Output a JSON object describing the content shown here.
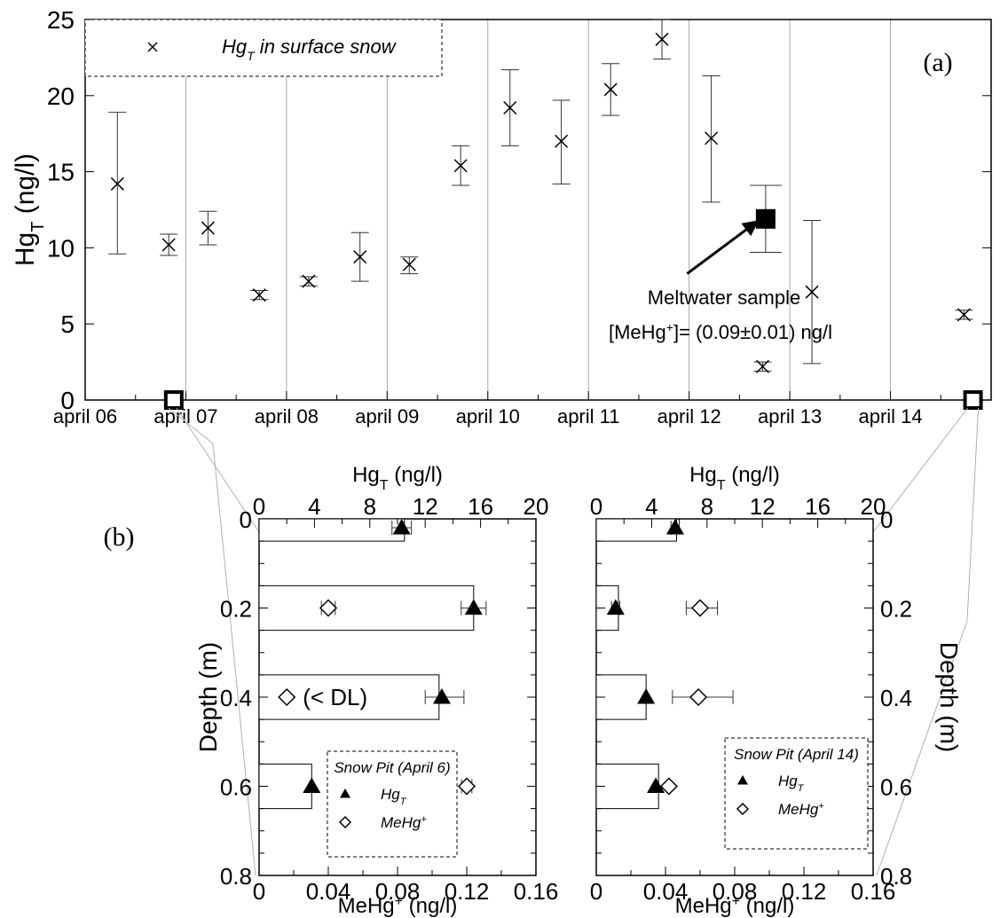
{
  "chart_data": [
    {
      "id": "a",
      "type": "scatter",
      "panel_label": "(a)",
      "title": "",
      "ylabel": "Hg",
      "ylabel_sub": "T",
      "ylabel_unit": " (ng/l)",
      "xlabel": "",
      "ylim": [
        0,
        25
      ],
      "xlim": [
        6.0,
        15.0
      ],
      "yticks": [
        0,
        5,
        10,
        15,
        20,
        25
      ],
      "xticks": [
        {
          "v": 6,
          "label": "april 06"
        },
        {
          "v": 7,
          "label": "april 07"
        },
        {
          "v": 8,
          "label": "april 08"
        },
        {
          "v": 9,
          "label": "april 09"
        },
        {
          "v": 10,
          "label": "april 10"
        },
        {
          "v": 11,
          "label": "april 11"
        },
        {
          "v": 12,
          "label": "april 12"
        },
        {
          "v": 13,
          "label": "april 13"
        },
        {
          "v": 14,
          "label": "april 14"
        }
      ],
      "grid": "vertical",
      "legend": {
        "position": "top-left",
        "label_pre": "Hg",
        "label_sub": "T",
        "label_post": " in  surface snow"
      },
      "series": [
        {
          "name": "HgT in surface snow",
          "marker": "x",
          "points": [
            {
              "x": 6.32,
              "y": 14.2,
              "lo": 9.6,
              "hi": 18.9
            },
            {
              "x": 6.83,
              "y": 10.2,
              "lo": 9.5,
              "hi": 10.9
            },
            {
              "x": 7.22,
              "y": 11.3,
              "lo": 10.2,
              "hi": 12.4
            },
            {
              "x": 7.73,
              "y": 6.9,
              "lo": 6.6,
              "hi": 7.2
            },
            {
              "x": 8.22,
              "y": 7.8,
              "lo": 7.5,
              "hi": 8.1
            },
            {
              "x": 8.73,
              "y": 9.4,
              "lo": 7.8,
              "hi": 11.0
            },
            {
              "x": 9.22,
              "y": 8.9,
              "lo": 8.3,
              "hi": 9.4
            },
            {
              "x": 9.73,
              "y": 15.4,
              "lo": 14.1,
              "hi": 16.7
            },
            {
              "x": 10.22,
              "y": 19.2,
              "lo": 16.7,
              "hi": 21.7
            },
            {
              "x": 10.73,
              "y": 17.0,
              "lo": 14.2,
              "hi": 19.7
            },
            {
              "x": 11.22,
              "y": 20.4,
              "lo": 18.7,
              "hi": 22.1
            },
            {
              "x": 11.73,
              "y": 23.7,
              "lo": 22.4,
              "hi": 25.0
            },
            {
              "x": 12.22,
              "y": 17.2,
              "lo": 13.0,
              "hi": 21.3
            },
            {
              "x": 12.73,
              "y": 2.2,
              "lo": 1.9,
              "hi": 2.5
            },
            {
              "x": 13.22,
              "y": 7.1,
              "lo": 2.4,
              "hi": 11.8
            },
            {
              "x": 14.73,
              "y": 5.6,
              "lo": 5.3,
              "hi": 5.9
            }
          ]
        },
        {
          "name": "Meltwater sample",
          "marker": "filled-square",
          "points": [
            {
              "x": 12.76,
              "y": 11.9,
              "lo": 9.7,
              "hi": 14.1
            }
          ]
        },
        {
          "name": "snow pit markers",
          "marker": "open-square",
          "points": [
            {
              "x": 6.88,
              "y": 0
            },
            {
              "x": 14.82,
              "y": 0
            }
          ]
        }
      ],
      "annotation": {
        "line1": "Meltwater sample",
        "line2_pre": "[MeHg",
        "line2_sup": "+",
        "line2_post": "]= (0.09±0.01) ng/l",
        "arrow_from": {
          "x": 11.98,
          "y": 8.3
        },
        "arrow_to": {
          "x": 12.68,
          "y": 11.75
        }
      }
    },
    {
      "id": "b_left",
      "type": "bar",
      "panel_label": "(b)",
      "title": "",
      "ylabel": "Depth (m)",
      "ylim": [
        0,
        0.8
      ],
      "yticks": [
        0,
        0.2,
        0.4,
        0.6,
        0.8
      ],
      "top_axis": {
        "label_pre": "Hg",
        "label_sub": "T",
        "label_post": " (ng/l)",
        "lim": [
          0,
          20
        ],
        "ticks": [
          0,
          4,
          8,
          12,
          16,
          20
        ]
      },
      "bottom_axis": {
        "label_pre": "MeHg",
        "label_sup": "+",
        "label_post": " (ng/l)",
        "lim": [
          0,
          0.16
        ],
        "ticks": [
          0,
          0.04,
          0.08,
          0.12,
          0.16
        ]
      },
      "bars_HgT": [
        {
          "y0": -0.01,
          "y1": 0.05,
          "value": 10.5
        },
        {
          "y0": 0.15,
          "y1": 0.25,
          "value": 15.5
        },
        {
          "y0": 0.35,
          "y1": 0.45,
          "value": 13.0
        },
        {
          "y0": 0.55,
          "y1": 0.65,
          "value": 3.8
        }
      ],
      "HgT_points": [
        {
          "depth": 0.02,
          "value": 10.3,
          "lo": 9.6,
          "hi": 11.0
        },
        {
          "depth": 0.2,
          "value": 15.5,
          "lo": 14.6,
          "hi": 16.4
        },
        {
          "depth": 0.4,
          "value": 13.2,
          "lo": 12.0,
          "hi": 14.8
        },
        {
          "depth": 0.6,
          "value": 3.8
        }
      ],
      "MeHg_points": [
        {
          "depth": 0.2,
          "value": 0.04,
          "lo": 0.036,
          "hi": 0.044
        },
        {
          "depth": 0.4,
          "value": 0.016
        },
        {
          "depth": 0.6,
          "value": 0.12,
          "lo": 0.117,
          "hi": 0.123
        }
      ],
      "below_dl_label": "(< DL)",
      "legend": {
        "title": "Snow Pit (April 6)",
        "entry1_pre": "Hg",
        "entry1_sub": "T",
        "entry2_pre": "MeHg",
        "entry2_sup": "+",
        "position": "bottom-right"
      }
    },
    {
      "id": "b_right",
      "type": "bar",
      "panel_label": "",
      "title": "",
      "ylabel": "Depth (m)",
      "ylim": [
        0,
        0.8
      ],
      "yticks": [
        0,
        0.2,
        0.4,
        0.6,
        0.8
      ],
      "top_axis": {
        "label_pre": "Hg",
        "label_sub": "T",
        "label_post": " (ng/l)",
        "lim": [
          0,
          20
        ],
        "ticks": [
          0,
          4,
          8,
          12,
          16,
          20
        ]
      },
      "bottom_axis": {
        "label_pre": "MeHg",
        "label_sup": "+",
        "label_post": " (ng/l)",
        "lim": [
          0,
          0.16
        ],
        "ticks": [
          0,
          0.04,
          0.08,
          0.12,
          0.16
        ]
      },
      "bars_HgT": [
        {
          "y0": -0.01,
          "y1": 0.05,
          "value": 5.8
        },
        {
          "y0": 0.15,
          "y1": 0.25,
          "value": 1.6
        },
        {
          "y0": 0.35,
          "y1": 0.45,
          "value": 3.6
        },
        {
          "y0": 0.55,
          "y1": 0.65,
          "value": 4.5
        }
      ],
      "HgT_points": [
        {
          "depth": 0.02,
          "value": 5.7,
          "lo": 5.4,
          "hi": 6.0
        },
        {
          "depth": 0.2,
          "value": 1.4,
          "lo": 1.1,
          "hi": 1.7
        },
        {
          "depth": 0.4,
          "value": 3.6
        },
        {
          "depth": 0.6,
          "value": 4.3
        }
      ],
      "MeHg_points": [
        {
          "depth": 0.2,
          "value": 0.06,
          "lo": 0.052,
          "hi": 0.07
        },
        {
          "depth": 0.4,
          "value": 0.059,
          "lo": 0.044,
          "hi": 0.079
        },
        {
          "depth": 0.6,
          "value": 0.042
        }
      ],
      "legend": {
        "title": "Snow Pit (April 14)",
        "entry1_pre": "Hg",
        "entry1_sub": "T",
        "entry2_pre": "MeHg",
        "entry2_sup": "+",
        "position": "bottom-right"
      }
    }
  ]
}
